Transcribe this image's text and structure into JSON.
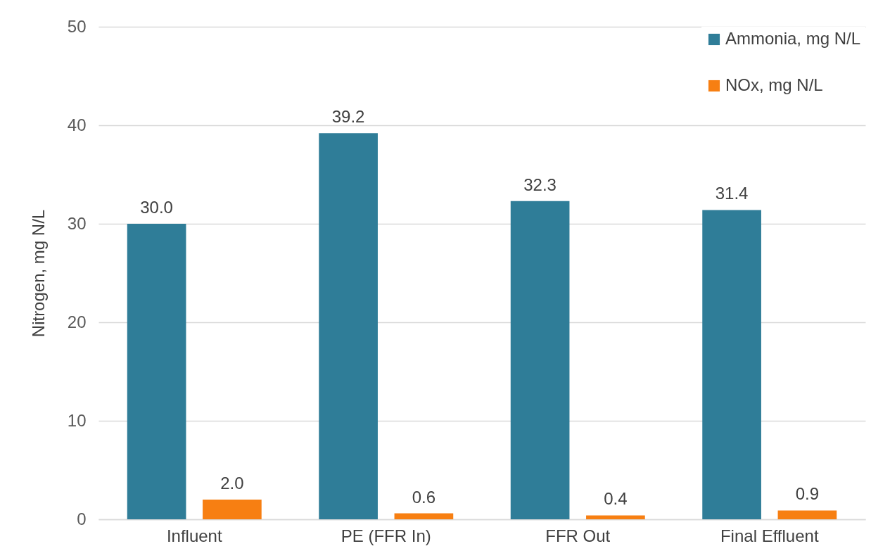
{
  "chart_data": {
    "type": "bar",
    "ylabel": "Nitrogen, mg N/L",
    "categories": [
      "Influent",
      "PE (FFR In)",
      "FFR Out",
      "Final Effluent"
    ],
    "series": [
      {
        "name": "Ammonia, mg N/L",
        "color": "#2f7d98",
        "values": [
          30.0,
          39.2,
          32.3,
          31.4
        ],
        "value_labels": [
          "30.0",
          "39.2",
          "32.3",
          "31.4"
        ]
      },
      {
        "name": "NOx, mg N/L",
        "color": "#f77f12",
        "values": [
          2.0,
          0.6,
          0.4,
          0.9
        ],
        "value_labels": [
          "2.0",
          "0.6",
          "0.4",
          "0.9"
        ]
      }
    ],
    "ylim": [
      0,
      50
    ],
    "yticks": [
      0,
      10,
      20,
      30,
      40,
      50
    ],
    "grid": "y",
    "legend": "top right"
  }
}
